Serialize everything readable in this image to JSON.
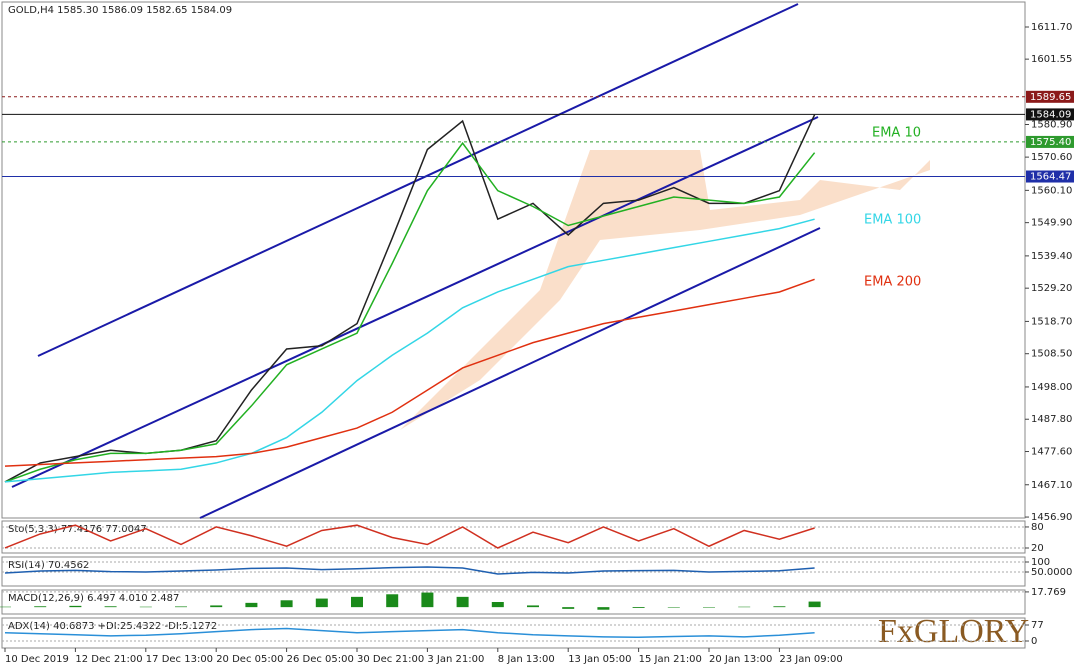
{
  "chart_data": [
    {
      "type": "line",
      "title": "GOLD,H4  1585.30 1586.09 1582.65 1584.09",
      "categories": [
        "10 Dec 2019",
        null,
        "12 Dec 21:00",
        null,
        "17 Dec 13:00",
        null,
        "20 Dec 05:00",
        null,
        "26 Dec 05:00",
        null,
        "30 Dec 21:00",
        null,
        "3 Jan 21:00",
        null,
        "8 Jan 13:00",
        null,
        "13 Jan 05:00",
        null,
        "15 Jan 21:00",
        null,
        "20 Jan 13:00",
        null,
        "23 Jan 09:00",
        null
      ],
      "series": [
        {
          "color": "#222222",
          "values": [
            1468,
            1474,
            1476,
            1478,
            1477,
            1478,
            1481,
            1497,
            1510,
            1511,
            1518,
            1545,
            1573,
            1582,
            1551,
            1556,
            1546,
            1556,
            1557,
            1561,
            1556,
            1556,
            1560,
            1584
          ]
        },
        {
          "name": "EMA 10",
          "color": "#22b022",
          "values": [
            1468,
            1472,
            1475,
            1477,
            1477,
            1478,
            1480,
            1492,
            1505,
            1510,
            1515,
            1537,
            1560,
            1575,
            1560,
            1555,
            1549,
            1552,
            1555,
            1558,
            1557,
            1556,
            1558,
            1572
          ]
        },
        {
          "name": "EMA 100",
          "color": "#33d6e6",
          "values": [
            1468,
            1469,
            1470,
            1471,
            1471.5,
            1472,
            1474,
            1477,
            1482,
            1490,
            1500,
            1508,
            1515,
            1523,
            1528,
            1532,
            1536,
            1538,
            1540,
            1542,
            1544,
            1546,
            1548,
            1551
          ]
        },
        {
          "name": "EMA 200",
          "color": "#e03010",
          "values": [
            1473,
            1473.5,
            1474,
            1474.5,
            1475,
            1475.5,
            1476,
            1477,
            1479,
            1482,
            1485,
            1490,
            1497,
            1504,
            1508,
            1512,
            1515,
            1518,
            1520,
            1522,
            1524,
            1526,
            1528,
            1532
          ]
        }
      ],
      "ylim": [
        1456.6,
        1619.6
      ],
      "yticks": [
        {
          "value": 1611.7,
          "label": "1611.70"
        },
        1601.55,
        {
          "value": 1580.9,
          "label": "1580.90"
        },
        {
          "value": 1570.6,
          "label": "1570.60"
        },
        {
          "value": 1560.1,
          "label": "1560.10"
        },
        {
          "value": 1549.9,
          "label": "1549.90"
        },
        {
          "value": 1539.4,
          "label": "1539.40"
        },
        {
          "value": 1529.2,
          "label": "1529.20"
        },
        {
          "value": 1518.7,
          "label": "1518.70"
        },
        {
          "value": 1508.5,
          "label": "1508.50"
        },
        {
          "value": 1498.0,
          "label": "1498.00"
        },
        {
          "value": 1487.8,
          "label": "1487.80"
        },
        {
          "value": 1477.6,
          "label": "1477.60"
        },
        {
          "value": 1467.1,
          "label": "1467.10"
        },
        {
          "value": 1456.9,
          "label": "1456.90"
        }
      ],
      "levels": [
        {
          "value": 1589.65,
          "label": "1589.65",
          "color": "#8b1a1a"
        },
        {
          "value": 1584.09,
          "label": "1584.09",
          "color": "#111111"
        },
        {
          "value": 1575.4,
          "label": "1575.40",
          "color": "#2e9a2e"
        },
        {
          "value": 1564.47,
          "label": "1564.47",
          "color": "#1f2fa8"
        }
      ]
    },
    {
      "type": "line",
      "title": "Sto(5,3,3) 77.4176 77.0047",
      "series": [
        {
          "color": "#d03020",
          "values": [
            20,
            60,
            85,
            40,
            75,
            30,
            80,
            55,
            25,
            70,
            85,
            50,
            30,
            80,
            20,
            65,
            35,
            80,
            40,
            75,
            25,
            70,
            45,
            77
          ]
        }
      ],
      "ylim": [
        5.7,
        97
      ],
      "yticks": [
        20,
        80
      ]
    },
    {
      "type": "line",
      "title": "RSI(14) 70.4562",
      "series": [
        {
          "color": "#1e5fb0",
          "values": [
            45,
            55,
            58,
            52,
            50,
            55,
            60,
            68,
            70,
            62,
            66,
            72,
            75,
            70,
            40,
            48,
            45,
            55,
            57,
            58,
            50,
            53,
            56,
            70
          ]
        }
      ],
      "ylim": [
        -20,
        125
      ],
      "yticks": [
        {
          "value": 50,
          "label": "50.0000"
        },
        100
      ]
    },
    {
      "type": "bar",
      "title": "MACD(12,26,9) 6.497 4.010 2.487",
      "series": [
        {
          "color": "#1a8a1a",
          "values": [
            0.5,
            1,
            1.5,
            1,
            0.5,
            0.8,
            2,
            5,
            8,
            10,
            12,
            15,
            17,
            12,
            6,
            2,
            -2,
            -3,
            -1,
            0,
            -0.5,
            0.5,
            1,
            6.5
          ]
        }
      ],
      "ylim": [
        -8,
        20
      ],
      "yticks": [
        17.769
      ]
    },
    {
      "type": "line",
      "title": "ADX(14) 40.6873 +DI:25.4322 -DI:5.1272",
      "series": [
        {
          "color": "#2a8fd8",
          "values": [
            40,
            35,
            30,
            25,
            28,
            35,
            45,
            55,
            60,
            50,
            40,
            45,
            50,
            55,
            40,
            30,
            25,
            20,
            18,
            22,
            25,
            20,
            28,
            40
          ]
        }
      ],
      "ylim": [
        -33.6,
        110.7
      ],
      "yticks": [
        0,
        77
      ]
    }
  ],
  "logo": "FxGLORY"
}
